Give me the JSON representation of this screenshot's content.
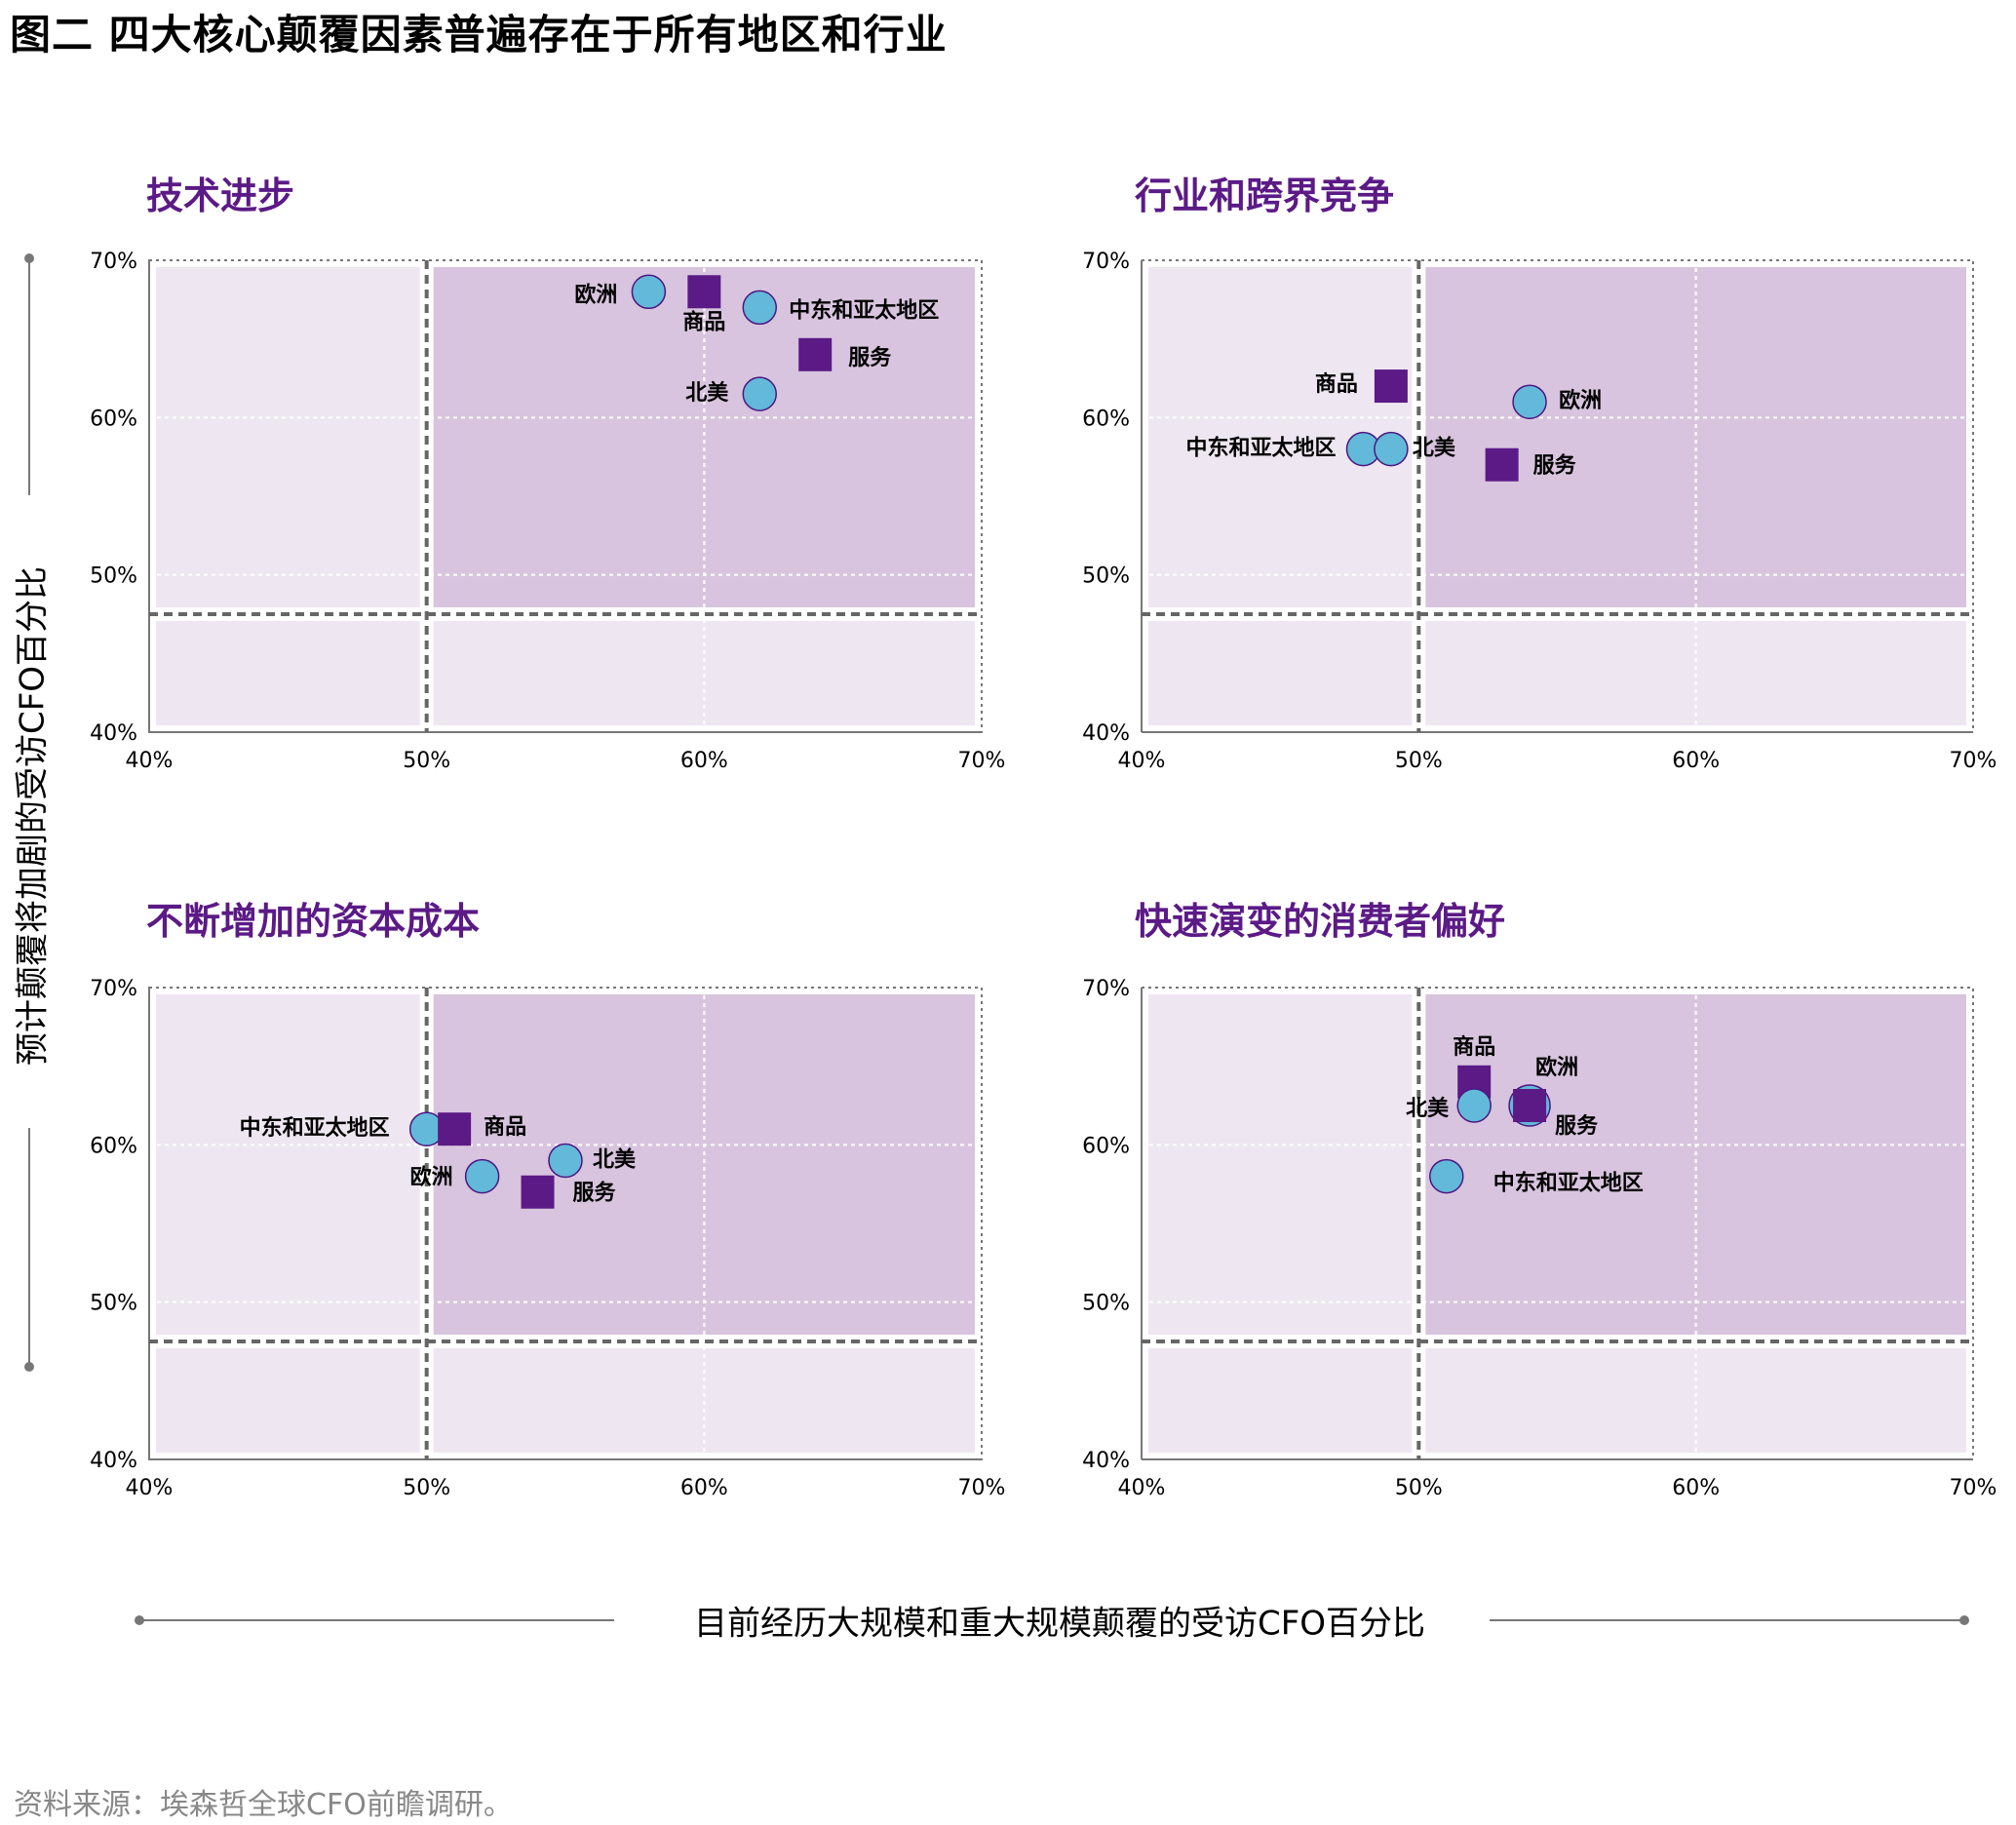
{
  "figure": {
    "title": "图二  四大核心颠覆因素普遍存在于所有地区和行业",
    "ylabel": "预计颠覆将加剧的受访CFO百分比",
    "xlabel": "目前经历大规模和重大规模颠覆的受访CFO百分比",
    "source": "资料来源：埃森哲全球CFO前瞻调研。"
  },
  "colors": {
    "title": "#5b1a86",
    "circle_fill": "#63b9d9",
    "circle_stroke": "#4b1782",
    "square_fill": "#5b1a86",
    "high_quadrant": "#d8c4de",
    "low_quadrant": "#eee6f0",
    "threshold_line": "#666666",
    "grid_line": "#ffffff"
  },
  "chart_data": [
    {
      "type": "scatter",
      "title": "技术进步",
      "x_ticks": [
        "40%",
        "50%",
        "60%",
        "70%"
      ],
      "y_ticks": [
        "40%",
        "50%",
        "60%",
        "70%"
      ],
      "xlim": [
        40,
        70
      ],
      "ylim": [
        40,
        70
      ],
      "threshold_x": 50,
      "threshold_y": 47.5,
      "grid": true,
      "points": [
        {
          "label": "欧洲",
          "kind": "region",
          "x": 58,
          "y": 68,
          "big": false
        },
        {
          "label": "商品",
          "kind": "industry",
          "x": 60,
          "y": 68,
          "big": false
        },
        {
          "label": "中东和亚太地区",
          "kind": "region",
          "x": 62,
          "y": 67,
          "big": false
        },
        {
          "label": "服务",
          "kind": "industry",
          "x": 64,
          "y": 64,
          "big": false
        },
        {
          "label": "北美",
          "kind": "region",
          "x": 62,
          "y": 61.5,
          "big": false
        }
      ]
    },
    {
      "type": "scatter",
      "title": "行业和跨界竞争",
      "x_ticks": [
        "40%",
        "50%",
        "60%",
        "70%"
      ],
      "y_ticks": [
        "40%",
        "50%",
        "60%",
        "70%"
      ],
      "xlim": [
        40,
        70
      ],
      "ylim": [
        40,
        70
      ],
      "threshold_x": 50,
      "threshold_y": 47.5,
      "grid": true,
      "points": [
        {
          "label": "商品",
          "kind": "industry",
          "x": 49,
          "y": 62,
          "big": false
        },
        {
          "label": "欧洲",
          "kind": "region",
          "x": 54,
          "y": 61,
          "big": false
        },
        {
          "label": "中东和亚太地区",
          "kind": "region",
          "x": 48,
          "y": 58,
          "big": false
        },
        {
          "label": "北美",
          "kind": "region",
          "x": 49,
          "y": 58,
          "big": false
        },
        {
          "label": "服务",
          "kind": "industry",
          "x": 53,
          "y": 57,
          "big": false
        }
      ]
    },
    {
      "type": "scatter",
      "title": "不断增加的资本成本",
      "x_ticks": [
        "40%",
        "50%",
        "60%",
        "70%"
      ],
      "y_ticks": [
        "40%",
        "50%",
        "60%",
        "70%"
      ],
      "xlim": [
        40,
        70
      ],
      "ylim": [
        40,
        70
      ],
      "threshold_x": 50,
      "threshold_y": 47.5,
      "grid": true,
      "points": [
        {
          "label": "中东和亚太地区",
          "kind": "region",
          "x": 50,
          "y": 61,
          "big": false
        },
        {
          "label": "商品",
          "kind": "industry",
          "x": 51,
          "y": 61,
          "big": false
        },
        {
          "label": "北美",
          "kind": "region",
          "x": 55,
          "y": 59,
          "big": false
        },
        {
          "label": "欧洲",
          "kind": "region",
          "x": 52,
          "y": 58,
          "big": false
        },
        {
          "label": "服务",
          "kind": "industry",
          "x": 54,
          "y": 57,
          "big": false
        }
      ]
    },
    {
      "type": "scatter",
      "title": "快速演变的消费者偏好",
      "x_ticks": [
        "40%",
        "50%",
        "60%",
        "70%"
      ],
      "y_ticks": [
        "40%",
        "50%",
        "60%",
        "70%"
      ],
      "xlim": [
        40,
        70
      ],
      "ylim": [
        40,
        70
      ],
      "threshold_x": 50,
      "threshold_y": 47.5,
      "grid": true,
      "points": [
        {
          "label": "商品",
          "kind": "industry",
          "x": 52,
          "y": 64,
          "big": false
        },
        {
          "label": "欧洲",
          "kind": "region",
          "x": 54,
          "y": 62.5,
          "big": true
        },
        {
          "label": "北美",
          "kind": "region",
          "x": 52,
          "y": 62.5,
          "big": false
        },
        {
          "label": "服务",
          "kind": "industry",
          "x": 54,
          "y": 62.5,
          "big": false
        },
        {
          "label": "中东和亚太地区",
          "kind": "region",
          "x": 51,
          "y": 58,
          "big": false
        }
      ]
    }
  ]
}
